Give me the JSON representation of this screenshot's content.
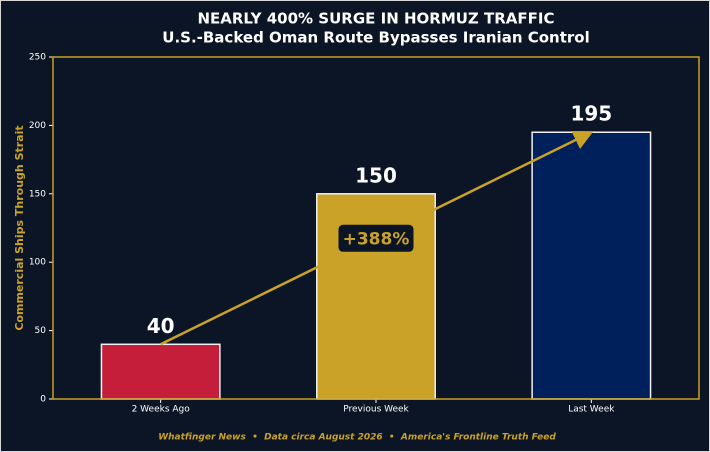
{
  "chart_data": {
    "type": "bar",
    "title": "NEARLY 400% SURGE IN HORMUZ TRAFFIC",
    "subtitle": "U.S.-Backed Oman Route Bypasses Iranian Control",
    "y_label": "Commercial Ships Through Strait",
    "categories": [
      "2 Weeks Ago",
      "Previous Week",
      "Last Week"
    ],
    "values": [
      40,
      150,
      195
    ],
    "colors": [
      "#c41e3a",
      "#c9a227",
      "#00205b"
    ],
    "ylim": [
      0,
      250
    ],
    "yticks": [
      0,
      50,
      100,
      150,
      200,
      250
    ],
    "annotation": "+388%",
    "footer": "Whatfinger News  •  Data circa August 2026  •  America's Frontline Truth Feed"
  }
}
